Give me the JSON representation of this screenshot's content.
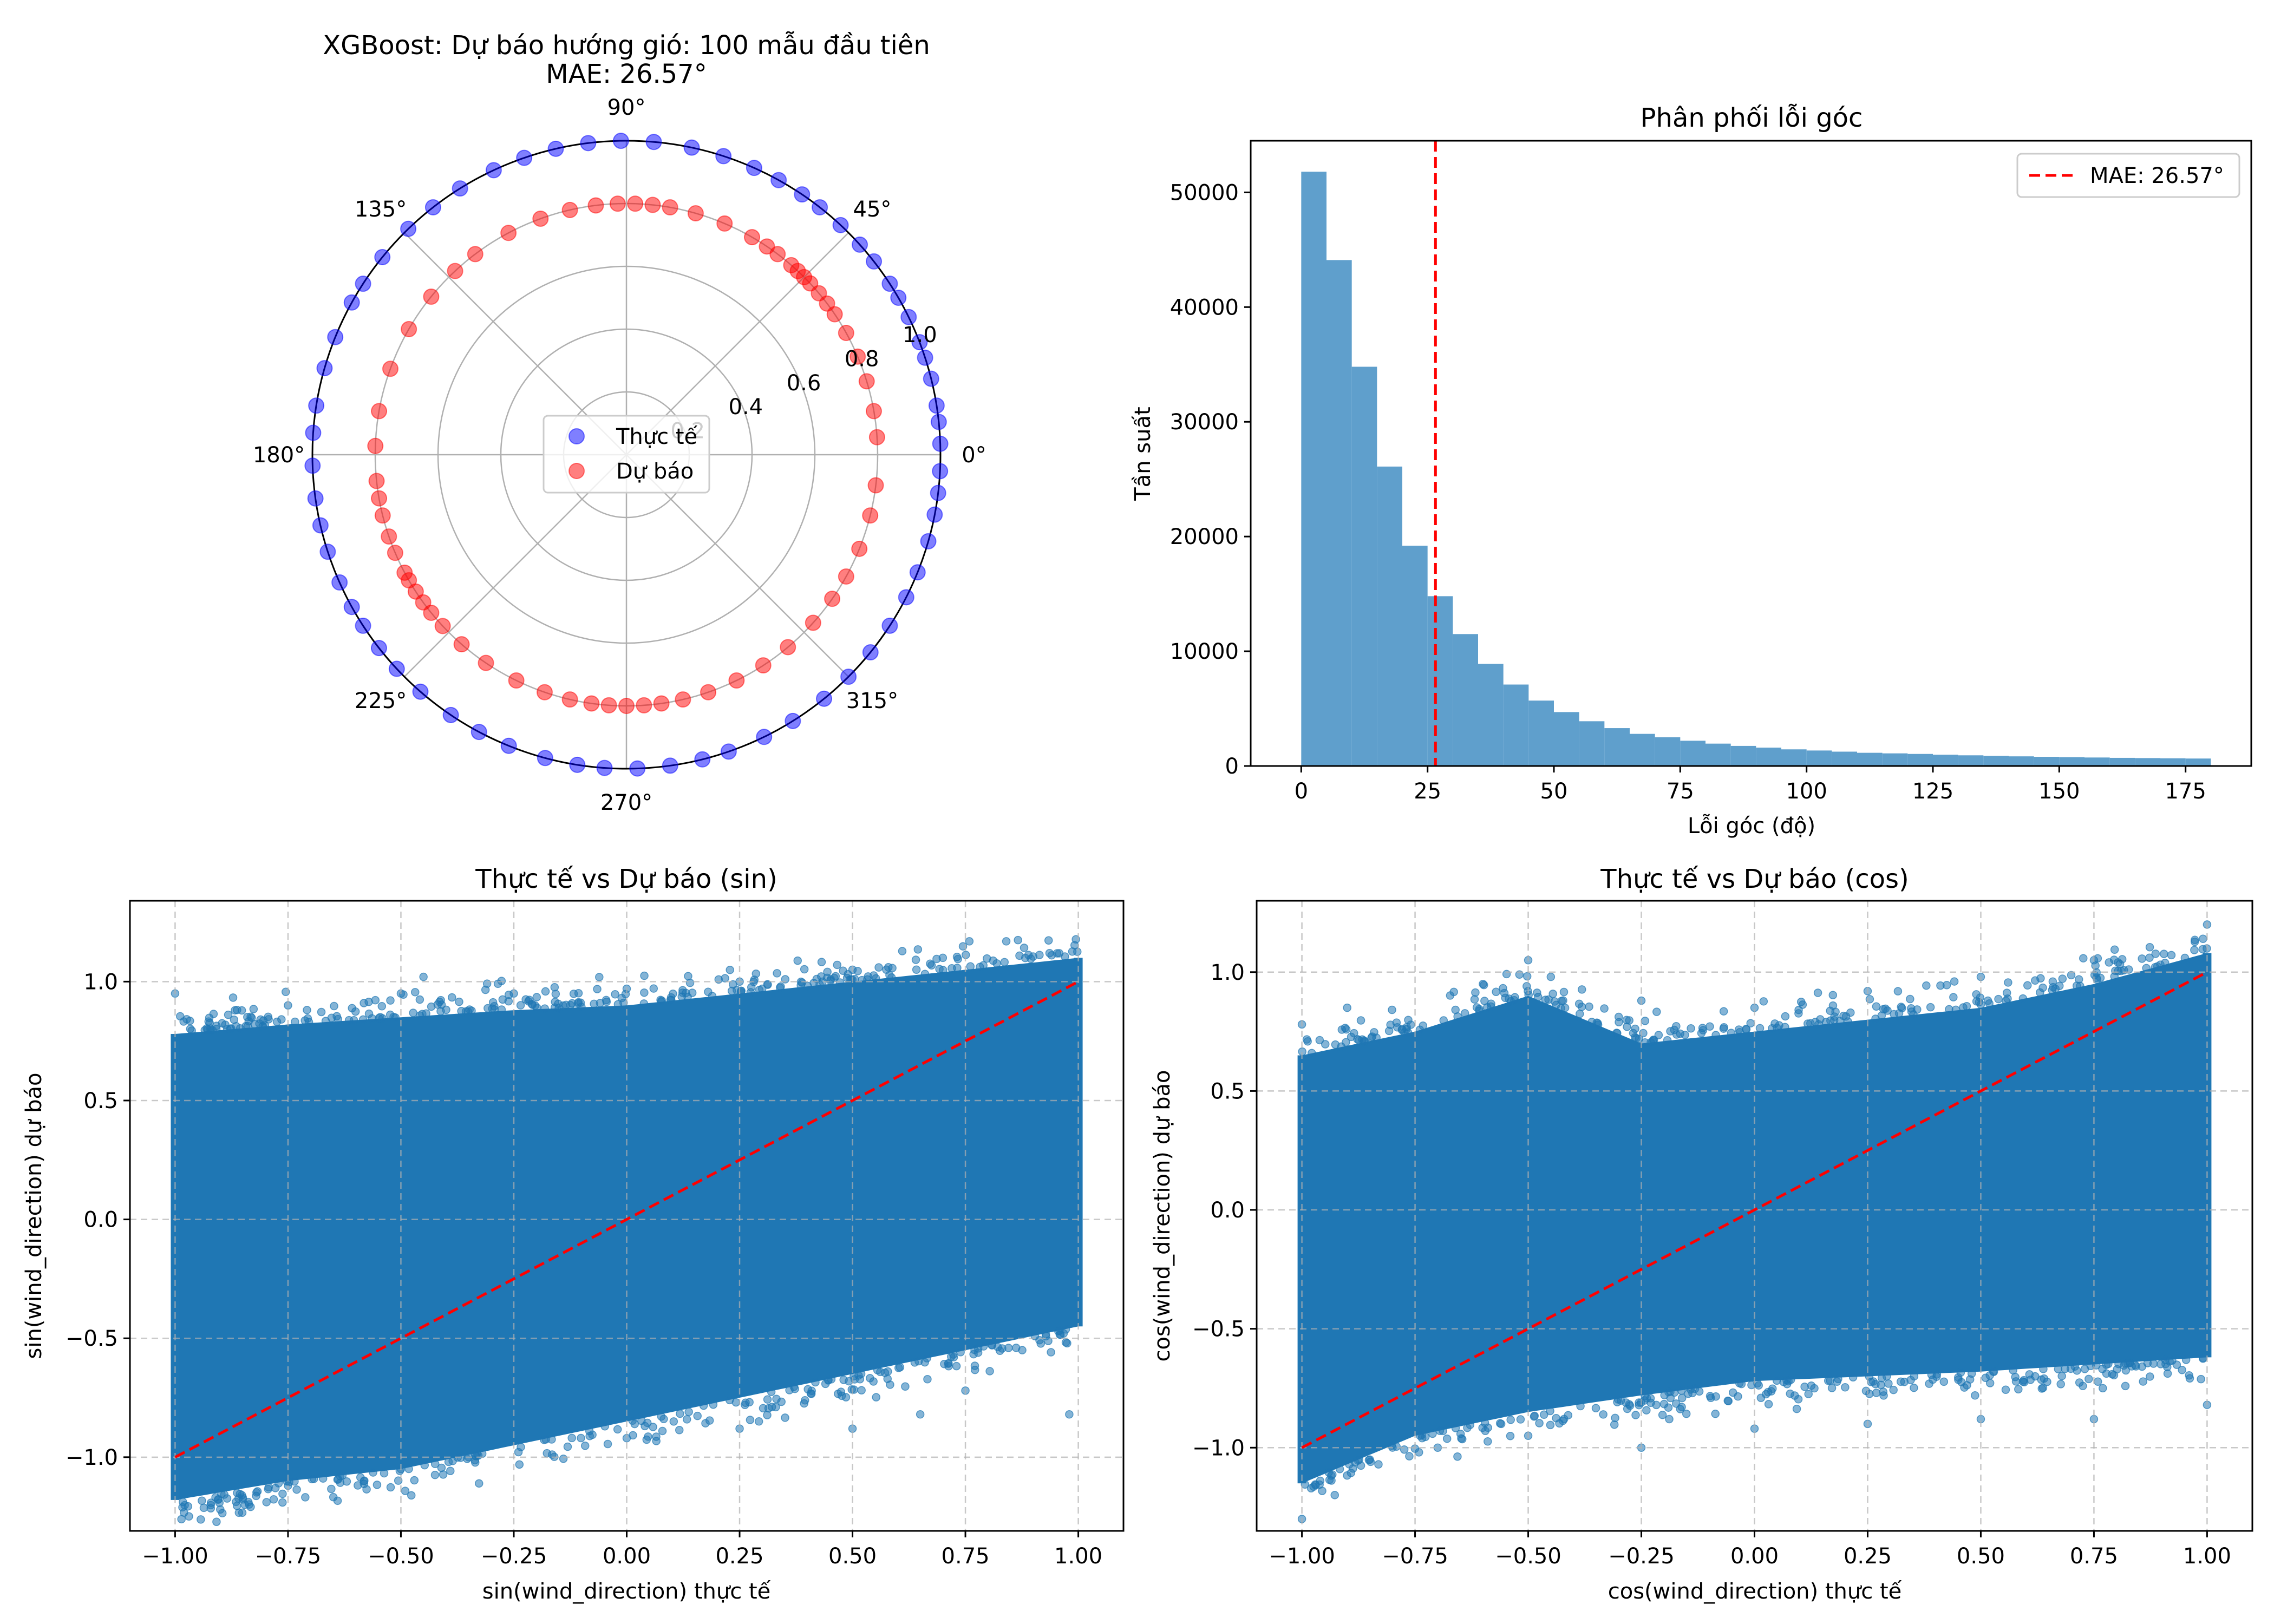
{
  "chart_data": [
    {
      "type": "scatter",
      "subtype": "polar",
      "title": "XGBoost: Dự báo hướng gió: 100 mẫu đầu tiên",
      "subtitle": "MAE: 26.57°",
      "angle_ticks": [
        "0°",
        "45°",
        "90°",
        "135°",
        "180°",
        "225°",
        "270°",
        "315°"
      ],
      "radial_ticks": [
        "0.2",
        "0.4",
        "0.6",
        "0.8",
        "1.0"
      ],
      "rlim": [
        0,
        1.0
      ],
      "grid": true,
      "legend": {
        "placement": "center",
        "entries": [
          "Thực tế",
          "Dự báo"
        ]
      },
      "colors": {
        "actual": "#0000ff",
        "predicted": "#ff0000"
      },
      "series": [
        {
          "name": "Thực tế",
          "r": 1.0,
          "angles_deg": [
            2,
            6,
            9,
            14,
            18,
            21,
            26,
            30,
            33,
            38,
            42,
            47,
            52,
            56,
            61,
            66,
            72,
            78,
            85,
            91,
            97,
            103,
            109,
            115,
            122,
            128,
            134,
            141,
            147,
            151,
            158,
            164,
            171,
            176,
            182,
            188,
            193,
            198,
            204,
            209,
            213,
            218,
            223,
            229,
            236,
            242,
            248,
            255,
            261,
            266,
            272,
            278,
            284,
            289,
            296,
            302,
            309,
            315,
            321,
            327,
            333,
            338,
            344,
            349,
            353,
            357
          ]
        },
        {
          "name": "Dự báo",
          "r": 0.8,
          "angles_deg": [
            4,
            10,
            17,
            23,
            29,
            34,
            37,
            40,
            43,
            45,
            47,
            49,
            53,
            56,
            60,
            67,
            74,
            80,
            84,
            88,
            92,
            97,
            103,
            110,
            118,
            127,
            133,
            141,
            150,
            160,
            170,
            178,
            186,
            190,
            194,
            199,
            203,
            208,
            210,
            213,
            216,
            219,
            223,
            229,
            236,
            244,
            251,
            257,
            262,
            266,
            270,
            274,
            278,
            283,
            289,
            296,
            303,
            310,
            318,
            325,
            331,
            338,
            346,
            353
          ]
        }
      ]
    },
    {
      "type": "bar",
      "subtype": "histogram",
      "title": "Phân phối lỗi góc",
      "xlabel": "Lỗi góc (độ)",
      "ylabel": "Tần suất",
      "xlim": [
        -10,
        188
      ],
      "ylim": [
        0,
        54500
      ],
      "x_ticks": [
        "0",
        "25",
        "50",
        "75",
        "100",
        "125",
        "150",
        "175"
      ],
      "y_ticks": [
        "0",
        "10000",
        "20000",
        "30000",
        "40000",
        "50000"
      ],
      "bin_width": 5,
      "bin_start": 0,
      "values": [
        51800,
        44100,
        34800,
        26100,
        19200,
        14800,
        11500,
        8900,
        7100,
        5700,
        4700,
        3900,
        3300,
        2800,
        2500,
        2200,
        1950,
        1750,
        1600,
        1450,
        1350,
        1250,
        1150,
        1100,
        1050,
        980,
        930,
        880,
        840,
        800,
        770,
        740,
        710,
        690,
        670,
        650
      ],
      "color": "#5f9fcc",
      "vline": {
        "x": 26.57,
        "label": "MAE: 26.57°",
        "color": "#ff0000",
        "style": "dashed"
      },
      "legend": {
        "placement": "top-right",
        "entries": [
          "MAE: 26.57°"
        ]
      },
      "grid": false
    },
    {
      "type": "scatter",
      "title": "Thực tế vs Dự báo (sin)",
      "xlabel": "sin(wind_direction) thực tế",
      "ylabel": "sin(wind_direction) dự báo",
      "xlim": [
        -1.1,
        1.1
      ],
      "ylim": [
        -1.31,
        1.34
      ],
      "x_ticks": [
        "−1.00",
        "−0.75",
        "−0.50",
        "−0.25",
        "0.00",
        "0.25",
        "0.50",
        "0.75",
        "1.00"
      ],
      "y_ticks": [
        "−1.0",
        "−0.5",
        "0.0",
        "0.5",
        "1.0"
      ],
      "grid": true,
      "color": "#1f77b4",
      "reference_line": {
        "from": [
          -1,
          -1
        ],
        "to": [
          1,
          1
        ],
        "color": "#ff0000",
        "style": "dashed"
      },
      "band": {
        "x": [
          -1.0,
          -0.75,
          -0.5,
          -0.25,
          0.0,
          0.25,
          0.5,
          0.75,
          1.0
        ],
        "upper": [
          0.78,
          0.82,
          0.85,
          0.88,
          0.9,
          0.95,
          1.0,
          1.05,
          1.1
        ],
        "lower": [
          -1.18,
          -1.1,
          -1.05,
          -0.95,
          -0.85,
          -0.75,
          -0.65,
          -0.55,
          -0.45
        ]
      },
      "outliers": [
        [
          -1.0,
          0.95
        ],
        [
          -0.75,
          0.9
        ],
        [
          -0.5,
          0.95
        ],
        [
          -0.45,
          1.02
        ],
        [
          -0.25,
          0.95
        ],
        [
          0.0,
          0.97
        ],
        [
          0.25,
          1.0
        ],
        [
          0.3,
          0.97
        ],
        [
          0.5,
          1.05
        ],
        [
          0.7,
          1.1
        ],
        [
          -0.9,
          -1.22
        ],
        [
          -0.75,
          -1.12
        ],
        [
          -0.5,
          -1.05
        ],
        [
          -0.35,
          -1.0
        ],
        [
          0.0,
          -0.92
        ],
        [
          0.25,
          -0.88
        ],
        [
          0.5,
          -0.88
        ],
        [
          0.65,
          -0.82
        ],
        [
          0.75,
          -0.72
        ],
        [
          0.98,
          -0.82
        ]
      ]
    },
    {
      "type": "scatter",
      "title": "Thực tế vs Dự báo (cos)",
      "xlabel": "cos(wind_direction) thực tế",
      "ylabel": "cos(wind_direction) dự báo",
      "xlim": [
        -1.1,
        1.1
      ],
      "ylim": [
        -1.35,
        1.3
      ],
      "x_ticks": [
        "−1.00",
        "−0.75",
        "−0.50",
        "−0.25",
        "0.00",
        "0.25",
        "0.50",
        "0.75",
        "1.00"
      ],
      "y_ticks": [
        "−1.0",
        "−0.5",
        "0.0",
        "0.5",
        "1.0"
      ],
      "grid": true,
      "color": "#1f77b4",
      "reference_line": {
        "from": [
          -1,
          -1
        ],
        "to": [
          1,
          1
        ],
        "color": "#ff0000",
        "style": "dashed"
      },
      "band": {
        "x": [
          -1.0,
          -0.75,
          -0.5,
          -0.25,
          0.0,
          0.25,
          0.5,
          0.75,
          1.0
        ],
        "upper": [
          0.65,
          0.75,
          0.9,
          0.7,
          0.75,
          0.8,
          0.85,
          0.95,
          1.08
        ],
        "lower": [
          -1.15,
          -0.95,
          -0.85,
          -0.78,
          -0.72,
          -0.7,
          -0.68,
          -0.65,
          -0.62
        ]
      },
      "outliers": [
        [
          -1.0,
          0.78
        ],
        [
          -0.9,
          0.85
        ],
        [
          -0.6,
          0.95
        ],
        [
          -0.5,
          1.05
        ],
        [
          -0.45,
          0.98
        ],
        [
          -0.25,
          0.88
        ],
        [
          0.0,
          0.85
        ],
        [
          0.25,
          0.92
        ],
        [
          0.5,
          0.98
        ],
        [
          0.75,
          1.05
        ],
        [
          1.0,
          1.2
        ],
        [
          -1.0,
          -1.3
        ],
        [
          -0.85,
          -1.05
        ],
        [
          -0.7,
          -1.0
        ],
        [
          -0.5,
          -0.95
        ],
        [
          -0.25,
          -1.0
        ],
        [
          0.0,
          -0.92
        ],
        [
          0.25,
          -0.9
        ],
        [
          0.5,
          -0.88
        ],
        [
          0.75,
          -0.88
        ],
        [
          1.0,
          -0.82
        ]
      ]
    }
  ]
}
